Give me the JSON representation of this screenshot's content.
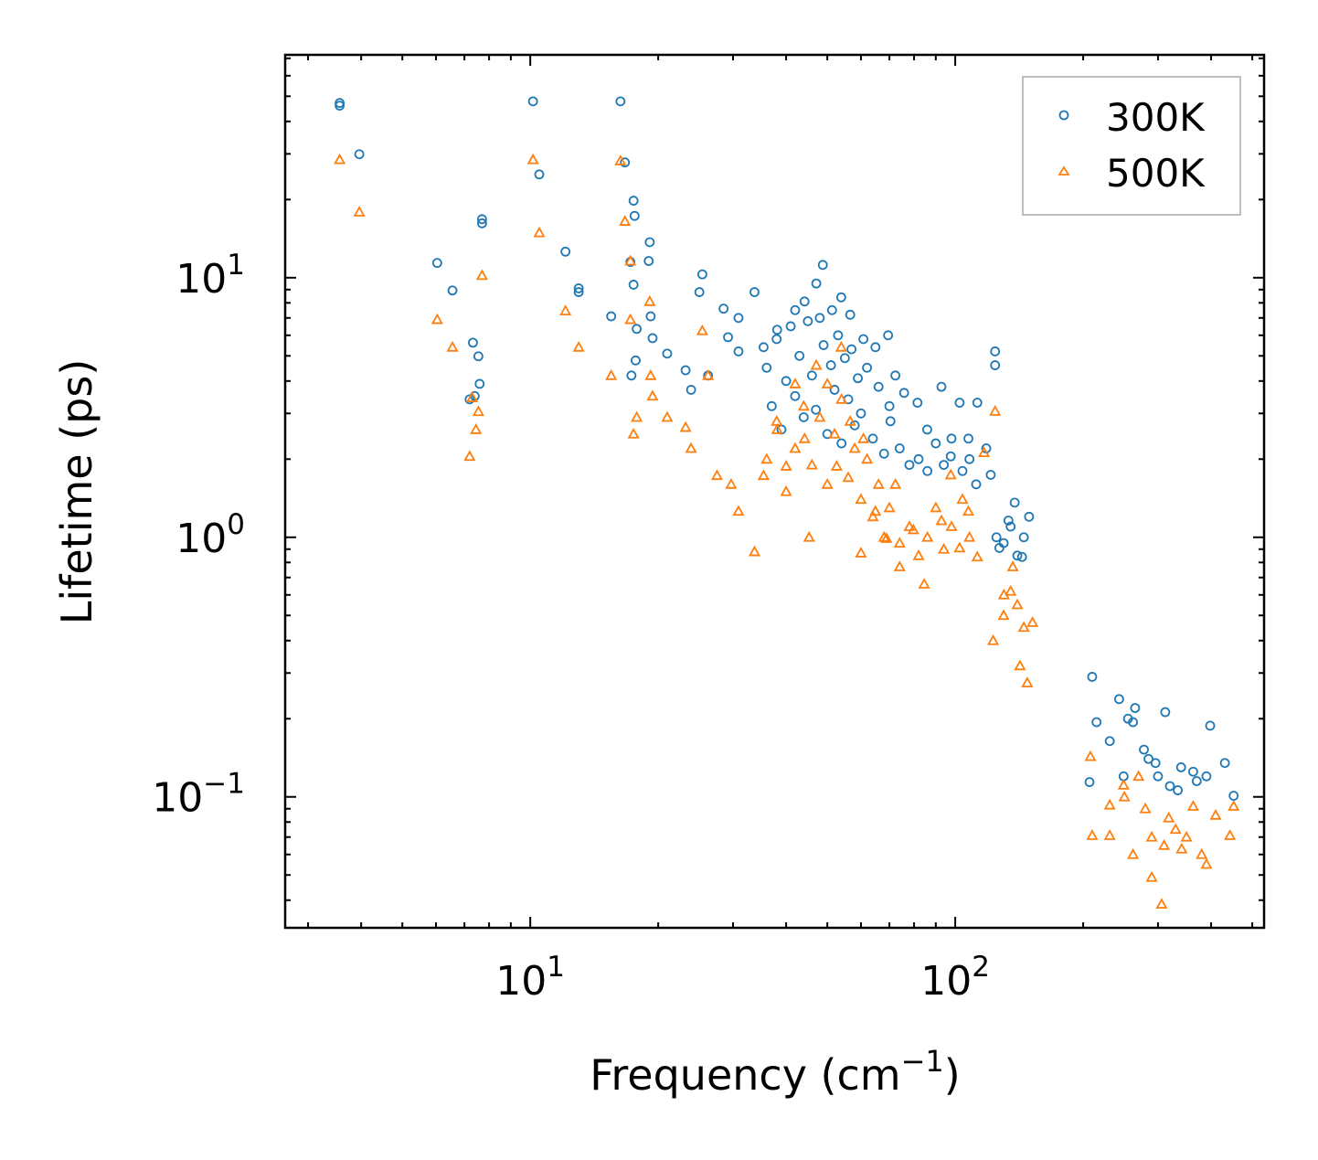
{
  "chart_data": {
    "type": "scatter",
    "title": "",
    "xlabel": "Frequency (cm",
    "xlabel_sup": "−1",
    "xlabel_end": ")",
    "ylabel": "Lifetime (ps)",
    "xscale": "log",
    "yscale": "log",
    "xlim": [
      2.65,
      533
    ],
    "ylim": [
      0.0313,
      72.2
    ],
    "grid": false,
    "legend_position": "top-right",
    "x_ticks": [
      {
        "value": 10,
        "base": "10",
        "exp": "1"
      },
      {
        "value": 100,
        "base": "10",
        "exp": "2"
      }
    ],
    "y_ticks": [
      {
        "value": 10,
        "base": "10",
        "exp": "1"
      },
      {
        "value": 1,
        "base": "10",
        "exp": "0"
      },
      {
        "value": 0.1,
        "base": "10",
        "exp": "−1"
      }
    ],
    "series": [
      {
        "name": "300K",
        "marker": "circle",
        "color": "#1f77b4",
        "points": [
          [
            3.56,
            47.1
          ],
          [
            3.56,
            46
          ],
          [
            3.96,
            29.9
          ],
          [
            6.04,
            11.4
          ],
          [
            6.56,
            8.93
          ],
          [
            7.33,
            5.62
          ],
          [
            7.2,
            3.4
          ],
          [
            7.55,
            4.98
          ],
          [
            7.7,
            16.8
          ],
          [
            7.7,
            16.2
          ],
          [
            7.6,
            3.9
          ],
          [
            7.4,
            3.5
          ],
          [
            10.15,
            47.8
          ],
          [
            10.5,
            25.0
          ],
          [
            12.1,
            12.6
          ],
          [
            13.0,
            9.1
          ],
          [
            13.0,
            8.8
          ],
          [
            15.5,
            7.1
          ],
          [
            16.3,
            47.8
          ],
          [
            16.7,
            27.8
          ],
          [
            17.5,
            19.8
          ],
          [
            17.6,
            17.3
          ],
          [
            17.2,
            11.5
          ],
          [
            17.5,
            9.4
          ],
          [
            17.8,
            6.35
          ],
          [
            17.7,
            4.8
          ],
          [
            17.3,
            4.2
          ],
          [
            19.1,
            13.7
          ],
          [
            19.0,
            11.6
          ],
          [
            19.4,
            5.85
          ],
          [
            19.2,
            7.1
          ],
          [
            21.0,
            5.1
          ],
          [
            23.2,
            4.4
          ],
          [
            23.9,
            3.7
          ],
          [
            25.4,
            10.3
          ],
          [
            25.0,
            8.8
          ],
          [
            26.2,
            4.2
          ],
          [
            28.5,
            7.6
          ],
          [
            29.2,
            5.9
          ],
          [
            30.9,
            5.2
          ],
          [
            30.9,
            7.0
          ],
          [
            33.7,
            8.8
          ],
          [
            35.4,
            5.4
          ],
          [
            38.1,
            6.3
          ],
          [
            42.0,
            7.5
          ],
          [
            44.2,
            8.1
          ],
          [
            47.1,
            9.5
          ],
          [
            48.8,
            11.2
          ],
          [
            51.3,
            7.5
          ],
          [
            53.9,
            8.4
          ],
          [
            56.6,
            7.2
          ],
          [
            60.8,
            5.8
          ],
          [
            64.9,
            5.4
          ],
          [
            69.5,
            6.0
          ],
          [
            72.3,
            4.2
          ],
          [
            70.4,
            2.8
          ],
          [
            75.8,
            3.6
          ],
          [
            81.5,
            3.3
          ],
          [
            85.9,
            2.6
          ],
          [
            92.8,
            3.8
          ],
          [
            97.6,
            2.05
          ],
          [
            102.4,
            3.3
          ],
          [
            107.4,
            2.4
          ],
          [
            112.7,
            3.3
          ],
          [
            118.3,
            2.2
          ],
          [
            124.1,
            5.2
          ],
          [
            124.1,
            4.6
          ],
          [
            121.2,
            1.74
          ],
          [
            127.0,
            0.91
          ],
          [
            133.4,
            1.16
          ],
          [
            138,
            1.36
          ],
          [
            143.6,
            0.84
          ],
          [
            149.2,
            1.2
          ],
          [
            210,
            0.29
          ],
          [
            215,
            0.194
          ],
          [
            231,
            0.164
          ],
          [
            243,
            0.238
          ],
          [
            262,
            0.194
          ],
          [
            278,
            0.152
          ],
          [
            296,
            0.135
          ],
          [
            312,
            0.212
          ],
          [
            334,
            0.106
          ],
          [
            363,
            0.125
          ],
          [
            398,
            0.188
          ],
          [
            431,
            0.135
          ],
          [
            452,
            0.101
          ],
          [
            207,
            0.114
          ],
          [
            249,
            0.12
          ],
          [
            36,
            4.5
          ],
          [
            37,
            3.2
          ],
          [
            38,
            5.8
          ],
          [
            39,
            2.6
          ],
          [
            40,
            4.0
          ],
          [
            41,
            6.5
          ],
          [
            42,
            3.5
          ],
          [
            43,
            5.0
          ],
          [
            44,
            2.9
          ],
          [
            45,
            6.8
          ],
          [
            46,
            4.2
          ],
          [
            47,
            3.1
          ],
          [
            48,
            7.0
          ],
          [
            49,
            5.5
          ],
          [
            50,
            2.5
          ],
          [
            51,
            4.6
          ],
          [
            52,
            3.7
          ],
          [
            53,
            6.0
          ],
          [
            54,
            2.3
          ],
          [
            55,
            4.9
          ],
          [
            56,
            3.4
          ],
          [
            57,
            5.3
          ],
          [
            58,
            2.7
          ],
          [
            59,
            4.1
          ],
          [
            60,
            3.0
          ],
          [
            62,
            4.5
          ],
          [
            64,
            2.4
          ],
          [
            66,
            3.8
          ],
          [
            68,
            2.1
          ],
          [
            70,
            3.2
          ],
          [
            74,
            2.2
          ],
          [
            78,
            1.9
          ],
          [
            82,
            2.0
          ],
          [
            86,
            1.8
          ],
          [
            90,
            2.3
          ],
          [
            94,
            1.9
          ],
          [
            98,
            2.4
          ],
          [
            104,
            1.8
          ],
          [
            108,
            2.0
          ],
          [
            112,
            1.6
          ],
          [
            125,
            1.0
          ],
          [
            130,
            0.95
          ],
          [
            135,
            1.1
          ],
          [
            140,
            0.85
          ],
          [
            145,
            1.0
          ],
          [
            255,
            0.2
          ],
          [
            265,
            0.22
          ],
          [
            285,
            0.14
          ],
          [
            300,
            0.12
          ],
          [
            320,
            0.11
          ],
          [
            340,
            0.13
          ],
          [
            370,
            0.115
          ],
          [
            390,
            0.12
          ]
        ]
      },
      {
        "name": "500K",
        "marker": "triangle",
        "color": "#ff7f0e",
        "points": [
          [
            3.56,
            28.5
          ],
          [
            3.96,
            17.9
          ],
          [
            6.04,
            6.9
          ],
          [
            6.56,
            5.4
          ],
          [
            7.2,
            2.05
          ],
          [
            7.45,
            2.6
          ],
          [
            7.55,
            3.05
          ],
          [
            7.7,
            10.2
          ],
          [
            7.3,
            3.45
          ],
          [
            10.15,
            28.5
          ],
          [
            10.5,
            14.9
          ],
          [
            12.1,
            7.45
          ],
          [
            13.0,
            5.4
          ],
          [
            15.5,
            4.2
          ],
          [
            16.3,
            28.2
          ],
          [
            16.7,
            16.5
          ],
          [
            17.2,
            11.6
          ],
          [
            17.2,
            6.9
          ],
          [
            17.5,
            2.5
          ],
          [
            17.8,
            2.9
          ],
          [
            19.1,
            8.1
          ],
          [
            19.2,
            4.2
          ],
          [
            19.4,
            3.5
          ],
          [
            21.0,
            2.9
          ],
          [
            23.2,
            2.65
          ],
          [
            23.9,
            2.2
          ],
          [
            25.4,
            6.25
          ],
          [
            26.2,
            4.2
          ],
          [
            27.5,
            1.73
          ],
          [
            29.7,
            1.6
          ],
          [
            30.9,
            1.26
          ],
          [
            33.7,
            0.88
          ],
          [
            35.4,
            1.73
          ],
          [
            38.1,
            2.6
          ],
          [
            40,
            1.88
          ],
          [
            42.0,
            3.9
          ],
          [
            44.2,
            2.4
          ],
          [
            45.3,
            1.0
          ],
          [
            47.1,
            4.6
          ],
          [
            50,
            3.9
          ],
          [
            52.6,
            1.88
          ],
          [
            53.9,
            5.4
          ],
          [
            56.6,
            2.8
          ],
          [
            60.8,
            2.4
          ],
          [
            60.0,
            0.87
          ],
          [
            64.9,
            1.26
          ],
          [
            68.9,
            0.99
          ],
          [
            72.3,
            1.6
          ],
          [
            74,
            0.77
          ],
          [
            79.7,
            1.07
          ],
          [
            84.5,
            0.66
          ],
          [
            92.8,
            1.16
          ],
          [
            97.6,
            1.74
          ],
          [
            102.4,
            0.91
          ],
          [
            107.4,
            1.26
          ],
          [
            112.7,
            0.84
          ],
          [
            116.9,
            2.12
          ],
          [
            124.1,
            3.06
          ],
          [
            122.8,
            0.4
          ],
          [
            130.2,
            0.6
          ],
          [
            136.6,
            0.77
          ],
          [
            142,
            0.32
          ],
          [
            147.7,
            0.275
          ],
          [
            152,
            0.47
          ],
          [
            210,
            0.071
          ],
          [
            208,
            0.143
          ],
          [
            231,
            0.093
          ],
          [
            231,
            0.071
          ],
          [
            249,
            0.111
          ],
          [
            262,
            0.06
          ],
          [
            280,
            0.09
          ],
          [
            290,
            0.049
          ],
          [
            306,
            0.0386
          ],
          [
            318,
            0.083
          ],
          [
            341,
            0.063
          ],
          [
            363,
            0.092
          ],
          [
            390,
            0.055
          ],
          [
            410,
            0.085
          ],
          [
            443,
            0.071
          ],
          [
            452,
            0.092
          ],
          [
            36,
            2.0
          ],
          [
            38,
            2.8
          ],
          [
            40,
            1.5
          ],
          [
            42,
            2.2
          ],
          [
            44,
            3.2
          ],
          [
            46,
            1.9
          ],
          [
            48,
            2.9
          ],
          [
            50,
            1.6
          ],
          [
            52,
            2.5
          ],
          [
            54,
            3.4
          ],
          [
            56,
            1.7
          ],
          [
            58,
            2.2
          ],
          [
            60,
            1.4
          ],
          [
            62,
            2.0
          ],
          [
            64,
            1.2
          ],
          [
            66,
            1.6
          ],
          [
            68,
            1.0
          ],
          [
            70,
            1.3
          ],
          [
            74,
            0.95
          ],
          [
            78,
            1.1
          ],
          [
            82,
            0.85
          ],
          [
            86,
            1.0
          ],
          [
            90,
            1.3
          ],
          [
            94,
            0.9
          ],
          [
            98,
            1.1
          ],
          [
            104,
            1.4
          ],
          [
            108,
            1.0
          ],
          [
            130,
            0.5
          ],
          [
            135,
            0.62
          ],
          [
            140,
            0.55
          ],
          [
            145,
            0.45
          ],
          [
            250,
            0.1
          ],
          [
            270,
            0.12
          ],
          [
            290,
            0.07
          ],
          [
            310,
            0.065
          ],
          [
            330,
            0.075
          ],
          [
            350,
            0.07
          ],
          [
            380,
            0.06
          ]
        ]
      }
    ]
  }
}
